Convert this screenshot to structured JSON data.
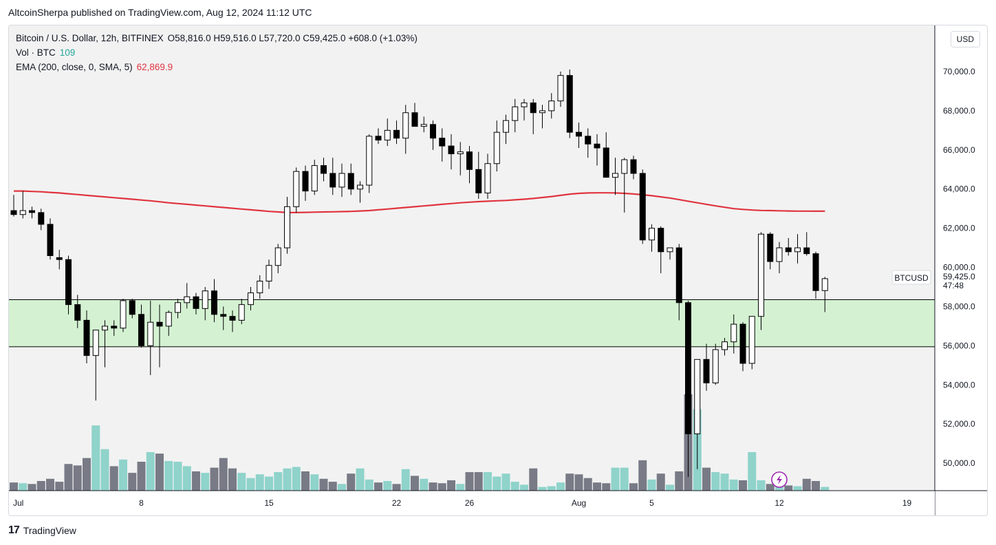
{
  "header": {
    "published_line": "AltcoinSherpa published on TradingView.com, Aug 12, 2024 11:12 UTC"
  },
  "legend": {
    "symbol_line": "Bitcoin / U.S. Dollar, 12h, BITFINEX",
    "ohlc_line": "O58,816.0  H59,516.0  L57,720.0  C59,425.0  +608.0 (+1.03%)",
    "vol_label": "Vol · BTC",
    "vol_value": "109",
    "ema_label": "EMA (200, close, 0, SMA, 5)",
    "ema_value": "62,869.9"
  },
  "axis": {
    "currency": "USD",
    "price_label": "BTCUSD",
    "last_price": "59,425.0",
    "countdown": "47:48"
  },
  "footer": {
    "brand": "TradingView"
  },
  "colors": {
    "ema": "#e0343f",
    "zone_fill": "#d4f2d2",
    "vol_up": "#8fd3cb",
    "vol_down": "#787b86",
    "candle": "#000000",
    "alert_icon": "#9c27b0"
  },
  "chart_data": {
    "type": "candlestick",
    "timeframe": "12h",
    "ylim": [
      48600,
      71300
    ],
    "y_ticks": [
      50000,
      52000,
      54000,
      56000,
      58000,
      60000,
      62000,
      64000,
      66000,
      68000,
      70000
    ],
    "y_tick_labels": [
      "50,000.0",
      "52,000.0",
      "54,000.0",
      "56,000.0",
      "58,000.0",
      "60,000.0",
      "62,000.0",
      "64,000.0",
      "66,000.0",
      "68,000.0",
      "70,000.0"
    ],
    "x_ticks": [
      {
        "label": "Jul",
        "index": 0
      },
      {
        "label": "8",
        "index": 14
      },
      {
        "label": "15",
        "index": 28
      },
      {
        "label": "22",
        "index": 42
      },
      {
        "label": "26",
        "index": 50
      },
      {
        "label": "Aug",
        "index": 62
      },
      {
        "label": "5",
        "index": 70
      },
      {
        "label": "12",
        "index": 84
      },
      {
        "label": "19",
        "index": 98
      }
    ],
    "zone": {
      "low": 55950,
      "high": 58350
    },
    "candles": [
      {
        "o": 62900,
        "h": 63700,
        "l": 62600,
        "c": 62700,
        "v": 11
      },
      {
        "o": 62700,
        "h": 63900,
        "l": 62500,
        "c": 62900,
        "v": 10
      },
      {
        "o": 62900,
        "h": 63100,
        "l": 62500,
        "c": 62800,
        "v": 9
      },
      {
        "o": 62800,
        "h": 63000,
        "l": 61900,
        "c": 62200,
        "v": 13
      },
      {
        "o": 62200,
        "h": 62500,
        "l": 60400,
        "c": 60600,
        "v": 16
      },
      {
        "o": 60500,
        "h": 60900,
        "l": 59900,
        "c": 60400,
        "v": 12
      },
      {
        "o": 60400,
        "h": 60600,
        "l": 57600,
        "c": 58100,
        "v": 36
      },
      {
        "o": 58100,
        "h": 58600,
        "l": 56900,
        "c": 57300,
        "v": 34
      },
      {
        "o": 57300,
        "h": 57800,
        "l": 55100,
        "c": 55500,
        "v": 44
      },
      {
        "o": 55500,
        "h": 56600,
        "l": 53200,
        "c": 56800,
        "v": 88
      },
      {
        "o": 56800,
        "h": 57300,
        "l": 54900,
        "c": 57000,
        "v": 56
      },
      {
        "o": 57000,
        "h": 57300,
        "l": 56500,
        "c": 56900,
        "v": 33
      },
      {
        "o": 56900,
        "h": 58400,
        "l": 56700,
        "c": 58300,
        "v": 42
      },
      {
        "o": 58300,
        "h": 58400,
        "l": 57400,
        "c": 57600,
        "v": 24
      },
      {
        "o": 57600,
        "h": 58100,
        "l": 55900,
        "c": 56000,
        "v": 39
      },
      {
        "o": 56000,
        "h": 58300,
        "l": 54500,
        "c": 57200,
        "v": 52
      },
      {
        "o": 57200,
        "h": 58100,
        "l": 54900,
        "c": 57000,
        "v": 50
      },
      {
        "o": 57000,
        "h": 57800,
        "l": 56500,
        "c": 57700,
        "v": 40
      },
      {
        "o": 57700,
        "h": 58400,
        "l": 57400,
        "c": 58200,
        "v": 39
      },
      {
        "o": 58200,
        "h": 59200,
        "l": 57900,
        "c": 58500,
        "v": 33
      },
      {
        "o": 58500,
        "h": 58700,
        "l": 57600,
        "c": 57900,
        "v": 26
      },
      {
        "o": 57900,
        "h": 59000,
        "l": 57300,
        "c": 58800,
        "v": 24
      },
      {
        "o": 58800,
        "h": 59400,
        "l": 57200,
        "c": 57600,
        "v": 31
      },
      {
        "o": 57600,
        "h": 58000,
        "l": 56800,
        "c": 57500,
        "v": 44
      },
      {
        "o": 57500,
        "h": 57800,
        "l": 56700,
        "c": 57300,
        "v": 30
      },
      {
        "o": 57300,
        "h": 58400,
        "l": 57100,
        "c": 58100,
        "v": 24
      },
      {
        "o": 58100,
        "h": 59000,
        "l": 57800,
        "c": 58700,
        "v": 17
      },
      {
        "o": 58700,
        "h": 59600,
        "l": 58400,
        "c": 59300,
        "v": 22
      },
      {
        "o": 59300,
        "h": 60400,
        "l": 58900,
        "c": 60100,
        "v": 19
      },
      {
        "o": 60100,
        "h": 61200,
        "l": 59700,
        "c": 61000,
        "v": 25
      },
      {
        "o": 61000,
        "h": 63600,
        "l": 60700,
        "c": 63100,
        "v": 30
      },
      {
        "o": 63100,
        "h": 65100,
        "l": 62800,
        "c": 64900,
        "v": 32
      },
      {
        "o": 64900,
        "h": 65200,
        "l": 63400,
        "c": 63900,
        "v": 26
      },
      {
        "o": 63900,
        "h": 65500,
        "l": 63700,
        "c": 65200,
        "v": 22
      },
      {
        "o": 65200,
        "h": 65600,
        "l": 64400,
        "c": 64800,
        "v": 16
      },
      {
        "o": 64800,
        "h": 65600,
        "l": 63700,
        "c": 64100,
        "v": 12
      },
      {
        "o": 64100,
        "h": 65300,
        "l": 63600,
        "c": 64800,
        "v": 9
      },
      {
        "o": 64800,
        "h": 65300,
        "l": 63700,
        "c": 64000,
        "v": 23
      },
      {
        "o": 64000,
        "h": 64400,
        "l": 63300,
        "c": 64200,
        "v": 30
      },
      {
        "o": 64200,
        "h": 66800,
        "l": 63800,
        "c": 66700,
        "v": 15
      },
      {
        "o": 66700,
        "h": 67100,
        "l": 66300,
        "c": 66500,
        "v": 11
      },
      {
        "o": 66500,
        "h": 67600,
        "l": 66200,
        "c": 67000,
        "v": 13
      },
      {
        "o": 67000,
        "h": 67500,
        "l": 66300,
        "c": 66600,
        "v": 9
      },
      {
        "o": 66600,
        "h": 68300,
        "l": 65800,
        "c": 67900,
        "v": 29
      },
      {
        "o": 67900,
        "h": 68400,
        "l": 67400,
        "c": 67200,
        "v": 20
      },
      {
        "o": 67200,
        "h": 67700,
        "l": 66900,
        "c": 67300,
        "v": 16
      },
      {
        "o": 67300,
        "h": 67500,
        "l": 66000,
        "c": 66600,
        "v": 11
      },
      {
        "o": 66600,
        "h": 67100,
        "l": 65400,
        "c": 66200,
        "v": 10
      },
      {
        "o": 66200,
        "h": 66800,
        "l": 65000,
        "c": 65800,
        "v": 14
      },
      {
        "o": 65800,
        "h": 66400,
        "l": 64700,
        "c": 65900,
        "v": 9
      },
      {
        "o": 65900,
        "h": 66200,
        "l": 64300,
        "c": 65000,
        "v": 25
      },
      {
        "o": 65000,
        "h": 65900,
        "l": 63500,
        "c": 63800,
        "v": 25
      },
      {
        "o": 63800,
        "h": 65800,
        "l": 63500,
        "c": 65300,
        "v": 25
      },
      {
        "o": 65300,
        "h": 67500,
        "l": 64900,
        "c": 66900,
        "v": 19
      },
      {
        "o": 66900,
        "h": 67800,
        "l": 66300,
        "c": 67500,
        "v": 23
      },
      {
        "o": 67500,
        "h": 68600,
        "l": 66900,
        "c": 68200,
        "v": 12
      },
      {
        "o": 68200,
        "h": 68600,
        "l": 67500,
        "c": 68400,
        "v": 8
      },
      {
        "o": 68400,
        "h": 68600,
        "l": 66800,
        "c": 67900,
        "v": 30
      },
      {
        "o": 67900,
        "h": 68300,
        "l": 67100,
        "c": 68000,
        "v": 5
      },
      {
        "o": 68000,
        "h": 68900,
        "l": 67600,
        "c": 68500,
        "v": 6
      },
      {
        "o": 68500,
        "h": 70000,
        "l": 68200,
        "c": 69800,
        "v": 11
      },
      {
        "o": 69800,
        "h": 70100,
        "l": 66600,
        "c": 66900,
        "v": 23
      },
      {
        "o": 66900,
        "h": 67400,
        "l": 66100,
        "c": 66700,
        "v": 22
      },
      {
        "o": 66700,
        "h": 67100,
        "l": 65600,
        "c": 66300,
        "v": 17
      },
      {
        "o": 66300,
        "h": 66800,
        "l": 65200,
        "c": 66100,
        "v": 11
      },
      {
        "o": 66100,
        "h": 66900,
        "l": 64600,
        "c": 64600,
        "v": 10
      },
      {
        "o": 64600,
        "h": 65600,
        "l": 63700,
        "c": 64800,
        "v": 31
      },
      {
        "o": 64800,
        "h": 65600,
        "l": 62800,
        "c": 65500,
        "v": 31
      },
      {
        "o": 65500,
        "h": 65700,
        "l": 64500,
        "c": 64800,
        "v": 10
      },
      {
        "o": 64800,
        "h": 65000,
        "l": 61200,
        "c": 61400,
        "v": 41
      },
      {
        "o": 61400,
        "h": 62200,
        "l": 60800,
        "c": 62000,
        "v": 15
      },
      {
        "o": 62000,
        "h": 62100,
        "l": 59700,
        "c": 60800,
        "v": 23
      },
      {
        "o": 60800,
        "h": 61000,
        "l": 60400,
        "c": 61000,
        "v": 8
      },
      {
        "o": 61000,
        "h": 61200,
        "l": 57300,
        "c": 58200,
        "v": 26
      },
      {
        "o": 58200,
        "h": 58300,
        "l": 49300,
        "c": 51500,
        "v": 130
      },
      {
        "o": 51500,
        "h": 55300,
        "l": 49700,
        "c": 55300,
        "v": 110
      },
      {
        "o": 55300,
        "h": 56100,
        "l": 53700,
        "c": 54100,
        "v": 31
      },
      {
        "o": 54100,
        "h": 56100,
        "l": 54000,
        "c": 55800,
        "v": 25
      },
      {
        "o": 55800,
        "h": 56400,
        "l": 55500,
        "c": 56200,
        "v": 23
      },
      {
        "o": 56200,
        "h": 57600,
        "l": 55600,
        "c": 57100,
        "v": 15
      },
      {
        "o": 57100,
        "h": 57200,
        "l": 54700,
        "c": 55100,
        "v": 14
      },
      {
        "o": 55100,
        "h": 57300,
        "l": 54800,
        "c": 57500,
        "v": 52
      },
      {
        "o": 57500,
        "h": 61800,
        "l": 56800,
        "c": 61700,
        "v": 14
      },
      {
        "o": 61700,
        "h": 61800,
        "l": 59900,
        "c": 60300,
        "v": 9
      },
      {
        "o": 60300,
        "h": 61300,
        "l": 59700,
        "c": 61000,
        "v": 6
      },
      {
        "o": 61000,
        "h": 61500,
        "l": 60600,
        "c": 60800,
        "v": 7
      },
      {
        "o": 60800,
        "h": 61700,
        "l": 60200,
        "c": 61000,
        "v": 6
      },
      {
        "o": 61000,
        "h": 61800,
        "l": 60600,
        "c": 60700,
        "v": 16
      },
      {
        "o": 60700,
        "h": 60800,
        "l": 58400,
        "c": 58816,
        "v": 13
      },
      {
        "o": 58816,
        "h": 59516,
        "l": 57720,
        "c": 59425,
        "v": 5
      }
    ],
    "ema": [
      63900,
      63900,
      63880,
      63860,
      63830,
      63800,
      63760,
      63720,
      63680,
      63640,
      63600,
      63560,
      63520,
      63480,
      63440,
      63400,
      63350,
      63300,
      63260,
      63220,
      63180,
      63140,
      63100,
      63060,
      63020,
      62980,
      62940,
      62900,
      62860,
      62830,
      62800,
      62800,
      62810,
      62820,
      62830,
      62840,
      62850,
      62860,
      62880,
      62900,
      62940,
      62980,
      63020,
      63060,
      63100,
      63140,
      63180,
      63220,
      63260,
      63300,
      63330,
      63360,
      63380,
      63400,
      63420,
      63450,
      63480,
      63520,
      63570,
      63620,
      63680,
      63740,
      63780,
      63800,
      63810,
      63810,
      63800,
      63780,
      63750,
      63710,
      63660,
      63600,
      63540,
      63460,
      63380,
      63300,
      63220,
      63140,
      63070,
      63000,
      62960,
      62930,
      62910,
      62900,
      62890,
      62880,
      62875,
      62872,
      62870,
      62869.9
    ]
  }
}
